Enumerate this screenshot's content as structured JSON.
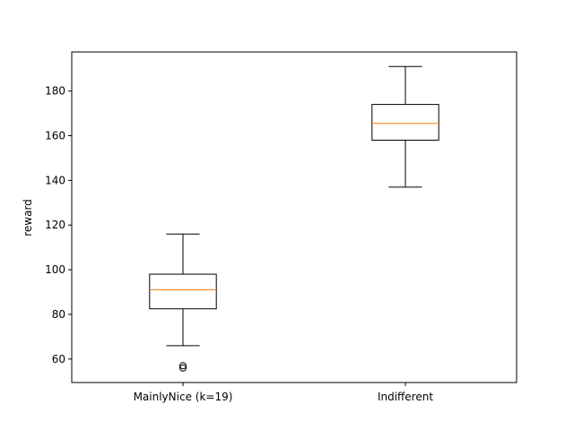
{
  "chart_data": {
    "type": "boxplot",
    "title": "",
    "xlabel": "",
    "ylabel": "reward",
    "ylim": [
      49.5,
      197.5
    ],
    "yticks": [
      60,
      80,
      100,
      120,
      140,
      160,
      180
    ],
    "categories": [
      "MainlyNice (k=19)",
      "Indifferent"
    ],
    "boxes": [
      {
        "name": "MainlyNice (k=19)",
        "whisker_low": 66,
        "q1": 82.5,
        "median": 91,
        "q3": 98,
        "whisker_high": 116,
        "outliers": [
          56,
          57
        ]
      },
      {
        "name": "Indifferent",
        "whisker_low": 137,
        "q1": 158,
        "median": 165.5,
        "q3": 174,
        "whisker_high": 191,
        "outliers": []
      }
    ],
    "colors": {
      "box": "#000000",
      "median": "#ff7f0e",
      "axes": "#000000"
    }
  }
}
